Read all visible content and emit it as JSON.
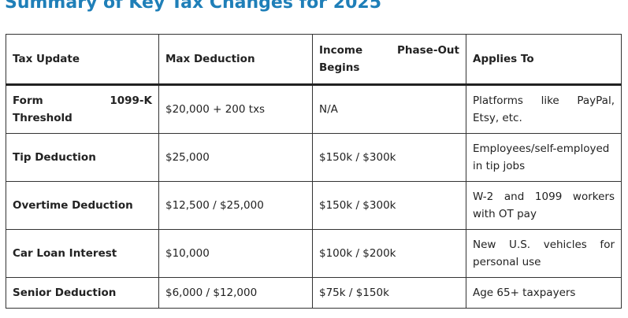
{
  "title": "Summary of Key Tax Changes for 2025",
  "table": {
    "headers": [
      "Tax Update",
      "Max Deduction",
      "Income Phase-Out Begins",
      "Applies To"
    ],
    "rows": [
      [
        "Form 1099-K Threshold",
        "$20,000 + 200 txs",
        "N/A",
        "Platforms like PayPal, Etsy, etc."
      ],
      [
        "Tip Deduction",
        "$25,000",
        "$150k / $300k",
        "Employees/self-employed in tip jobs"
      ],
      [
        "Overtime Deduction",
        "$12,500 / $25,000",
        "$150k / $300k",
        "W-2 and 1099 workers with OT pay"
      ],
      [
        "Car Loan Interest",
        "$10,000",
        "$100k / $200k",
        "New U.S. vehicles for personal use"
      ],
      [
        "Senior Deduction",
        "$6,000 / $12,000",
        "$75k / $150k",
        "Age 65+ taxpayers"
      ]
    ]
  }
}
